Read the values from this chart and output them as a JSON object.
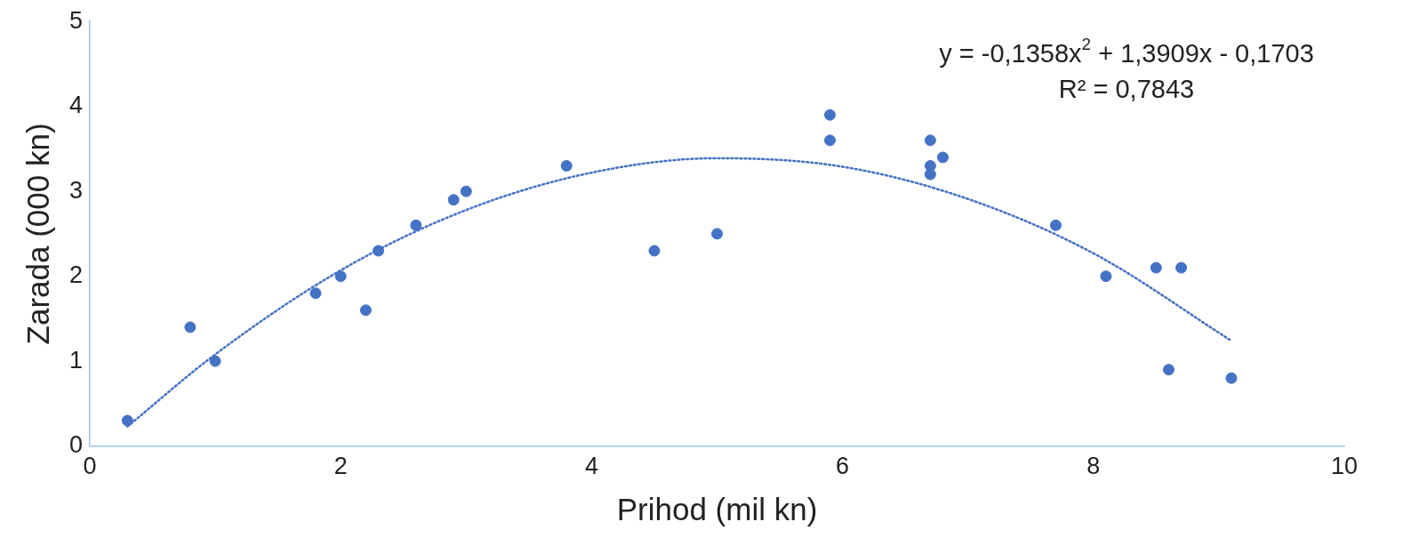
{
  "chart_data": {
    "type": "scatter",
    "xlabel": "Prihod (mil kn)",
    "ylabel": "Zarada (000 kn)",
    "xlim": [
      0,
      10
    ],
    "xticks": [
      0,
      2,
      4,
      6,
      8,
      10
    ],
    "ylim": [
      0,
      5
    ],
    "yticks": [
      0,
      1,
      2,
      3,
      4,
      5
    ],
    "grid": false,
    "legend": false,
    "marker": "circle",
    "annotations": [
      "y = -0,1358x$^{2}$ + 1,3909x - 0,1703",
      "R² = 0,7843"
    ],
    "series": [
      {
        "color": "#4472c4",
        "x": [
          0.3,
          0.8,
          1.0,
          1.8,
          2.0,
          2.2,
          2.3,
          2.6,
          2.9,
          3.0,
          3.8,
          4.5,
          5.0,
          5.9,
          5.9,
          6.7,
          6.7,
          6.7,
          6.8,
          7.7,
          8.1,
          8.5,
          8.7,
          8.6,
          9.1
        ],
        "values": [
          0.3,
          1.4,
          1.0,
          1.8,
          2.0,
          1.6,
          2.3,
          2.6,
          2.9,
          3.0,
          3.3,
          2.3,
          2.5,
          3.9,
          3.6,
          3.6,
          3.3,
          3.2,
          3.4,
          2.6,
          2.0,
          2.1,
          2.1,
          0.9,
          0.8
        ]
      },
      {
        "type": "line",
        "color": "#4472c4",
        "line_style": "dotted",
        "marker": "none",
        "x": [
          0.3,
          1,
          2,
          3,
          4,
          5,
          6,
          7,
          8,
          9.1
        ],
        "values": [
          0.23,
          1.08,
          2.07,
          2.78,
          3.22,
          3.39,
          3.29,
          2.91,
          2.27,
          1.24
        ]
      }
    ]
  }
}
